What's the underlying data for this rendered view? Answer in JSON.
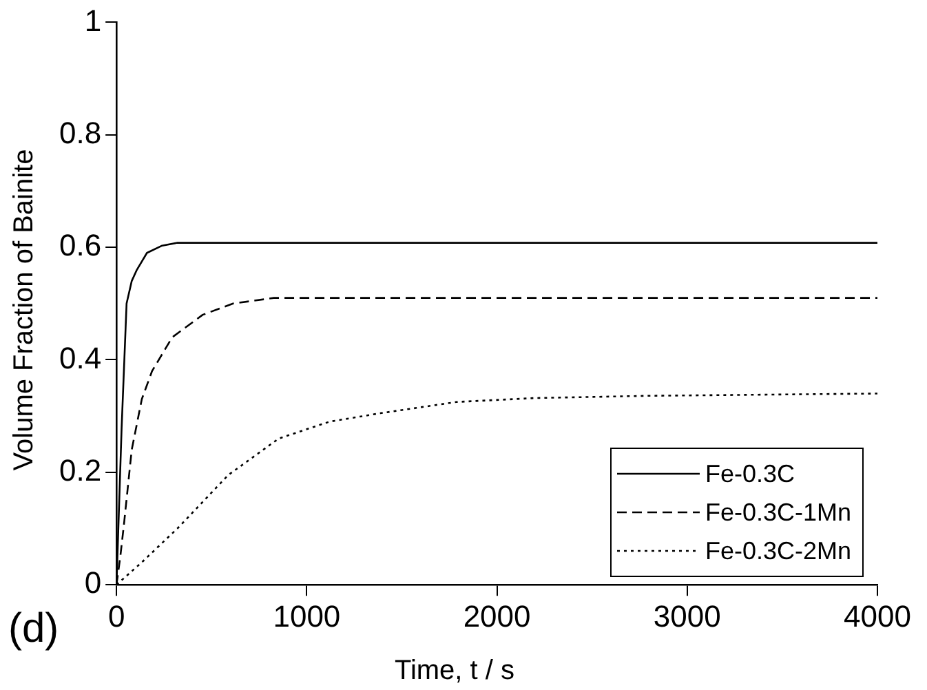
{
  "chart_data": {
    "type": "line",
    "xlabel": "Time, t / s",
    "ylabel": "Volume Fraction of Bainite",
    "annotations": [
      "(d)"
    ],
    "xlim": [
      0,
      4000
    ],
    "xticks": [
      0,
      1000,
      2000,
      3000,
      4000
    ],
    "ylim": [
      0,
      1
    ],
    "yticks": [
      0,
      0.2,
      0.4,
      0.6,
      0.8,
      1
    ],
    "grid": false,
    "legend": "bottom right",
    "marker": "none",
    "series": [
      {
        "name": "Fe-0.3C",
        "color": "#000000",
        "line_style": "solid",
        "x": [
          0,
          27,
          53,
          80,
          107,
          160,
          240,
          320,
          1000,
          2000,
          3000,
          4000
        ],
        "values": [
          0,
          0.28,
          0.5,
          0.54,
          0.56,
          0.59,
          0.603,
          0.608,
          0.608,
          0.608,
          0.608,
          0.608
        ]
      },
      {
        "name": "Fe-0.3C-1Mn",
        "color": "#000000",
        "line_style": "dashed",
        "x": [
          0,
          20,
          40,
          80,
          133,
          187,
          293,
          453,
          613,
          827,
          1500,
          2500,
          4000
        ],
        "values": [
          0,
          0.05,
          0.11,
          0.24,
          0.33,
          0.38,
          0.44,
          0.48,
          0.5,
          0.51,
          0.51,
          0.51,
          0.51
        ]
      },
      {
        "name": "Fe-0.3C-2Mn",
        "color": "#000000",
        "line_style": "dotted",
        "x": [
          0,
          133,
          320,
          587,
          853,
          1120,
          1387,
          1787,
          2200,
          2800,
          3400,
          4000
        ],
        "values": [
          0,
          0.04,
          0.1,
          0.195,
          0.26,
          0.29,
          0.305,
          0.325,
          0.332,
          0.336,
          0.338,
          0.34
        ]
      }
    ]
  }
}
